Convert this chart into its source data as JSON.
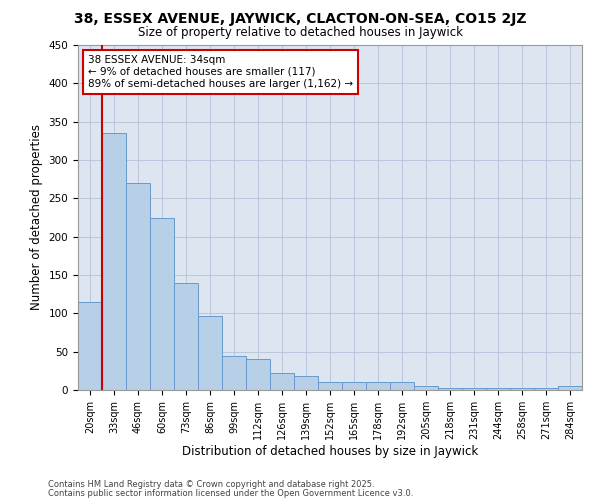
{
  "title1": "38, ESSEX AVENUE, JAYWICK, CLACTON-ON-SEA, CO15 2JZ",
  "title2": "Size of property relative to detached houses in Jaywick",
  "xlabel": "Distribution of detached houses by size in Jaywick",
  "ylabel": "Number of detached properties",
  "bar_color": "#b8cfe8",
  "bar_edge_color": "#6699cc",
  "bg_color": "#dde6f0",
  "grid_color": "#b8c8dc",
  "categories": [
    "20sqm",
    "33sqm",
    "46sqm",
    "60sqm",
    "73sqm",
    "86sqm",
    "99sqm",
    "112sqm",
    "126sqm",
    "139sqm",
    "152sqm",
    "165sqm",
    "178sqm",
    "192sqm",
    "205sqm",
    "218sqm",
    "231sqm",
    "244sqm",
    "258sqm",
    "271sqm",
    "284sqm"
  ],
  "values": [
    115,
    335,
    270,
    225,
    140,
    97,
    45,
    40,
    22,
    18,
    10,
    10,
    10,
    10,
    5,
    2,
    2,
    2,
    2,
    2,
    5
  ],
  "ylim": [
    0,
    450
  ],
  "yticks": [
    0,
    50,
    100,
    150,
    200,
    250,
    300,
    350,
    400,
    450
  ],
  "red_line_x": 0.5,
  "annotation_text": "38 ESSEX AVENUE: 34sqm\n← 9% of detached houses are smaller (117)\n89% of semi-detached houses are larger (1,162) →",
  "annotation_box_color": "#ffffff",
  "annotation_border_color": "#cc0000",
  "red_line_color": "#cc0000",
  "footer1": "Contains HM Land Registry data © Crown copyright and database right 2025.",
  "footer2": "Contains public sector information licensed under the Open Government Licence v3.0."
}
